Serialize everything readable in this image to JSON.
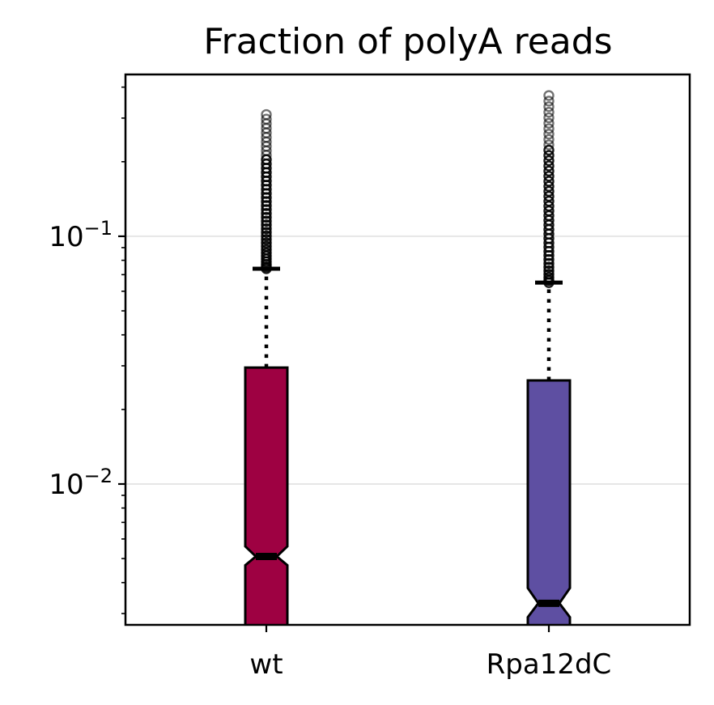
{
  "chart_data": {
    "type": "boxplot",
    "title": "Fraction of polyA reads",
    "xlabel": "",
    "ylabel": "",
    "yscale": "log",
    "ylim": [
      0.0027,
      0.45
    ],
    "y_ticks": [
      {
        "value": 0.1,
        "base": "10",
        "exponent": "−1"
      },
      {
        "value": 0.01,
        "base": "10",
        "exponent": "−2"
      }
    ],
    "grid": "horizontal at major ticks",
    "notched": true,
    "categories": [
      "wt",
      "Rpa12dC"
    ],
    "series": [
      {
        "name": "wt",
        "color": "#9e0142",
        "q1": 0.0027,
        "median": 0.0051,
        "q3": 0.0295,
        "whisker_low": 0.0027,
        "whisker_high": 0.074,
        "notch_low": 0.0047,
        "notch_high": 0.0056,
        "outliers_range": [
          0.074,
          0.31
        ]
      },
      {
        "name": "Rpa12dC",
        "color": "#5e4fa2",
        "q1": 0.0027,
        "median": 0.0033,
        "q3": 0.0262,
        "whisker_low": 0.0027,
        "whisker_high": 0.065,
        "notch_low": 0.0029,
        "notch_high": 0.0038,
        "outliers_range": [
          0.065,
          0.37
        ]
      }
    ]
  }
}
